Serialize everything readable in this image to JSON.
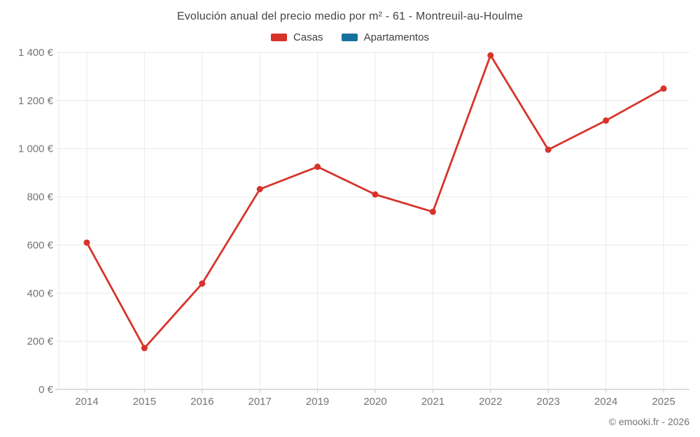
{
  "page": {
    "footer": "© emooki.fr - 2026"
  },
  "colors": {
    "casas": "#d7332b",
    "apartamentos": "#17719f",
    "grid": "#e9e9e9",
    "axis": "#c8c8c8",
    "tick_text": "#757575",
    "title_text": "#444444"
  },
  "chart_data": {
    "type": "line",
    "title": "Evolución anual del precio medio por m² - 61 - Montreuil-au-Houlme",
    "xlabel": "",
    "ylabel": "",
    "categories": [
      "2014",
      "2015",
      "2016",
      "2017",
      "2019",
      "2020",
      "2021",
      "2022",
      "2023",
      "2024",
      "2025"
    ],
    "series": [
      {
        "name": "Casas",
        "color": "#d7332b",
        "values": [
          610,
          172,
          440,
          832,
          925,
          810,
          738,
          1388,
          996,
          1117,
          1250
        ]
      },
      {
        "name": "Apartamentos",
        "color": "#17719f",
        "values": []
      }
    ],
    "ylim": [
      0,
      1400
    ],
    "y_tick_values": [
      0,
      200,
      400,
      600,
      800,
      1000,
      1200,
      1400
    ],
    "y_tick_labels": [
      "0 €",
      "200 €",
      "400 €",
      "600 €",
      "800 €",
      "1 000 €",
      "1 200 €",
      "1 400 €"
    ],
    "grid": true,
    "legend_position": "top"
  }
}
